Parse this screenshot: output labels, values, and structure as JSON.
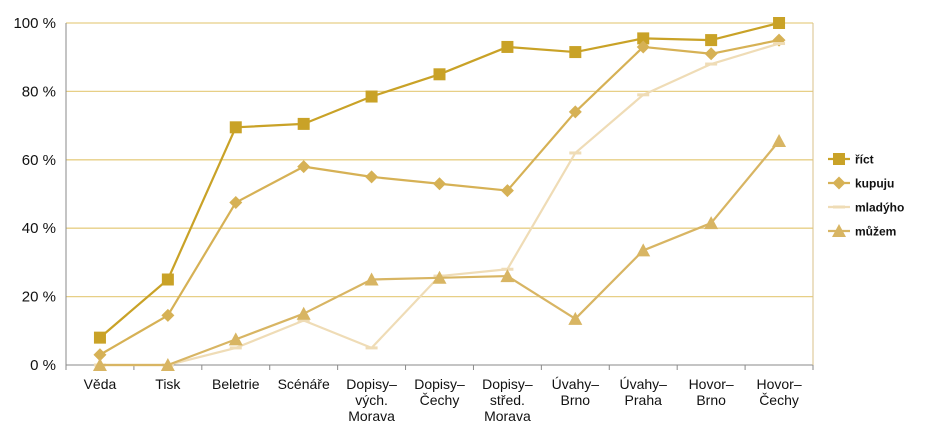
{
  "chart_data": {
    "type": "line",
    "title": "",
    "xlabel": "",
    "ylabel": "",
    "ylim": [
      0,
      100
    ],
    "yticks": [
      "0 %",
      "20 %",
      "40 %",
      "60 %",
      "80 %",
      "100 %"
    ],
    "yticks_values": [
      0,
      20,
      40,
      60,
      80,
      100
    ],
    "grid": true,
    "legend_position": "right",
    "categories": [
      [
        "Věda"
      ],
      [
        "Tisk"
      ],
      [
        "Beletrie"
      ],
      [
        "Scénáře"
      ],
      [
        "Dopisy–",
        "vých.",
        "Morava"
      ],
      [
        "Dopisy–",
        "Čechy"
      ],
      [
        "Dopisy–",
        "střed.",
        "Morava"
      ],
      [
        "Úvahy–",
        "Brno"
      ],
      [
        "Úvahy–",
        "Praha"
      ],
      [
        "Hovor–",
        "Brno"
      ],
      [
        "Hovor–",
        "Čechy"
      ]
    ],
    "series": [
      {
        "name": "říct",
        "marker": "square",
        "color": "#c9a227",
        "values": [
          8,
          25,
          69.5,
          70.5,
          78.5,
          85,
          93,
          91.5,
          95.5,
          95,
          100
        ]
      },
      {
        "name": "kupuju",
        "marker": "diamond",
        "color": "#d6b155",
        "values": [
          3,
          14.5,
          47.5,
          58,
          55,
          53,
          51,
          74,
          93,
          91,
          95
        ]
      },
      {
        "name": "mladýho",
        "marker": "dash",
        "color": "#efdcb6",
        "values": [
          0,
          0,
          5,
          13,
          5,
          26,
          28,
          62,
          79,
          88,
          94
        ]
      },
      {
        "name": "můžem",
        "marker": "triangle",
        "color": "#d8b563",
        "values": [
          0,
          0,
          7.5,
          15,
          25,
          25.5,
          26,
          13.5,
          33.5,
          41.5,
          65.5
        ]
      }
    ]
  }
}
